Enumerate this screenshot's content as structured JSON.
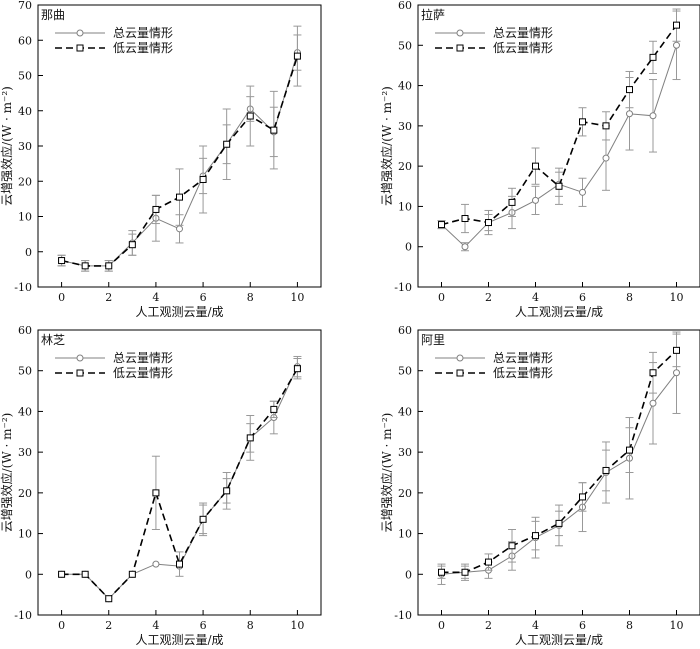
{
  "colors": {
    "series_total": "#808080",
    "series_low": "#000000",
    "error_bar": "#999999",
    "axis": "#000000"
  },
  "chart_data": [
    {
      "type": "line",
      "title": "那曲",
      "xlabel": "人工观测云量/成",
      "ylabel": "云增强效应/(W · m⁻²)",
      "xlim": [
        -1,
        11
      ],
      "ylim": [
        -10,
        70
      ],
      "xticks": [
        0,
        2,
        4,
        6,
        8,
        10
      ],
      "yticks": [
        -10,
        0,
        10,
        20,
        30,
        40,
        50,
        60,
        70
      ],
      "legend": "top-left",
      "x": [
        0,
        1,
        2,
        3,
        4,
        5,
        6,
        7,
        8,
        9,
        10
      ],
      "series": [
        {
          "name": "总云量情形",
          "style": "solid-circle",
          "values": [
            -2.5,
            -4,
            -4,
            2.5,
            9.5,
            6.5,
            21.5,
            30.5,
            40.5,
            34,
            56.5
          ],
          "error": [
            1.5,
            1.5,
            1.5,
            3.5,
            6.5,
            4,
            5,
            5.5,
            3.5,
            7,
            5
          ]
        },
        {
          "name": "低云量情形",
          "style": "dashed-square",
          "values": [
            -2.5,
            -4,
            -4,
            2,
            12,
            15.5,
            20.5,
            30.5,
            38.5,
            34.5,
            55.5
          ],
          "error": [
            1.5,
            1.5,
            1.5,
            3,
            4,
            8,
            9.5,
            10,
            8.5,
            11,
            8.5
          ]
        }
      ]
    },
    {
      "type": "line",
      "title": "拉萨",
      "xlabel": "人工观测云量/成",
      "ylabel": "云增强效应/(W · m⁻²)",
      "xlim": [
        -1,
        11
      ],
      "ylim": [
        -10,
        60
      ],
      "xticks": [
        0,
        2,
        4,
        6,
        8,
        10
      ],
      "yticks": [
        -10,
        0,
        10,
        20,
        30,
        40,
        50,
        60
      ],
      "legend": "top-left",
      "x": [
        0,
        1,
        2,
        3,
        4,
        5,
        6,
        7,
        8,
        9,
        10
      ],
      "series": [
        {
          "name": "总云量情形",
          "style": "solid-circle",
          "values": [
            5.5,
            0,
            6,
            8.5,
            11.5,
            15.5,
            13.5,
            22,
            33,
            32.5,
            50
          ],
          "error": [
            1,
            1,
            2,
            4,
            3.5,
            3,
            3.5,
            8,
            9,
            9,
            8.5
          ]
        },
        {
          "name": "低云量情形",
          "style": "dashed-square",
          "values": [
            5.5,
            7,
            6,
            11,
            20,
            15,
            31,
            30,
            39,
            47,
            55
          ],
          "error": [
            1,
            3.5,
            3,
            3.5,
            4.5,
            4.5,
            3.5,
            3.5,
            4.5,
            4,
            4
          ]
        }
      ]
    },
    {
      "type": "line",
      "title": "林芝",
      "xlabel": "人工观测云量/成",
      "ylabel": "云增强效应/(W · m⁻²)",
      "xlim": [
        -1,
        11
      ],
      "ylim": [
        -10,
        60
      ],
      "xticks": [
        0,
        2,
        4,
        6,
        8,
        10
      ],
      "yticks": [
        -10,
        0,
        10,
        20,
        30,
        40,
        50,
        60
      ],
      "legend": "top-left",
      "x": [
        0,
        1,
        2,
        3,
        4,
        5,
        6,
        7,
        8,
        9,
        10
      ],
      "series": [
        {
          "name": "总云量情形",
          "style": "solid-circle",
          "values": [
            0,
            0,
            -6,
            0,
            2.5,
            2,
            13.5,
            20.5,
            33.5,
            38.5,
            51
          ],
          "error": [
            0,
            0,
            0,
            0,
            0,
            0,
            4,
            4.5,
            5.5,
            4,
            2.5
          ]
        },
        {
          "name": "低云量情形",
          "style": "dashed-square",
          "values": [
            0,
            0,
            -6,
            0,
            20,
            2.5,
            13.5,
            20.5,
            33.5,
            40.5,
            50.5
          ],
          "error": [
            0,
            0,
            0,
            0,
            9,
            3,
            3.5,
            3,
            3.5,
            2,
            2.5
          ]
        }
      ]
    },
    {
      "type": "line",
      "title": "阿里",
      "xlabel": "人工观测云量/成",
      "ylabel": "云增强效应/(W · m⁻²)",
      "xlim": [
        -1,
        11
      ],
      "ylim": [
        -10,
        60
      ],
      "xticks": [
        0,
        2,
        4,
        6,
        8,
        10
      ],
      "yticks": [
        -10,
        0,
        10,
        20,
        30,
        40,
        50,
        60
      ],
      "legend": "top-left",
      "x": [
        0,
        1,
        2,
        3,
        4,
        5,
        6,
        7,
        8,
        9,
        10
      ],
      "series": [
        {
          "name": "总云量情形",
          "style": "solid-circle",
          "values": [
            0,
            0.5,
            1,
            4.5,
            9,
            12,
            16.5,
            25,
            28.5,
            42,
            49.5
          ],
          "error": [
            2.5,
            2,
            2,
            3.5,
            5,
            5,
            6,
            7.5,
            10,
            10,
            10
          ]
        },
        {
          "name": "低云量情形",
          "style": "dashed-square",
          "values": [
            0.5,
            0.5,
            3,
            7,
            9.5,
            12.5,
            19,
            25.5,
            30.5,
            49.5,
            55
          ],
          "error": [
            1.5,
            1.5,
            2,
            4,
            3.5,
            3,
            3.5,
            5,
            5.5,
            5,
            4
          ]
        }
      ]
    }
  ]
}
